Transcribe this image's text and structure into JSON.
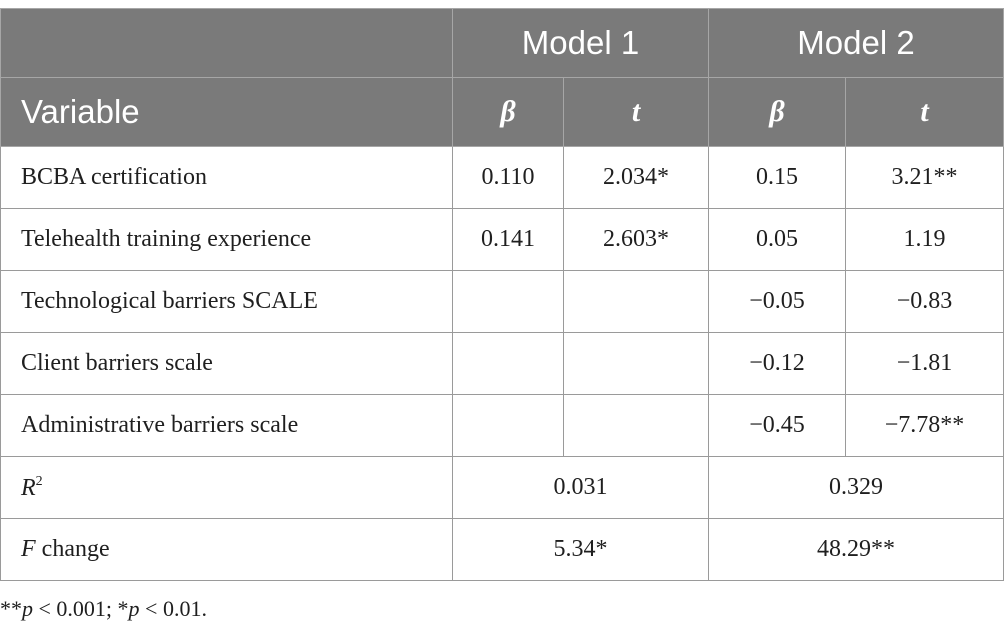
{
  "header": {
    "model1": "Model 1",
    "model2": "Model 2",
    "variable": "Variable",
    "beta": "β",
    "t": "t"
  },
  "rows": [
    {
      "label": "BCBA certification",
      "m1_beta": "0.110",
      "m1_t": "2.034*",
      "m2_beta": "0.15",
      "m2_t": "3.21**"
    },
    {
      "label": "Telehealth training experience",
      "m1_beta": "0.141",
      "m1_t": "2.603*",
      "m2_beta": "0.05",
      "m2_t": "1.19"
    },
    {
      "label": "Technological barriers SCALE",
      "m1_beta": "",
      "m1_t": "",
      "m2_beta": "−0.05",
      "m2_t": "−0.83"
    },
    {
      "label": "Client barriers scale",
      "m1_beta": "",
      "m1_t": "",
      "m2_beta": "−0.12",
      "m2_t": "−1.81"
    },
    {
      "label": "Administrative barriers scale",
      "m1_beta": "",
      "m1_t": "",
      "m2_beta": "−0.45",
      "m2_t": "−7.78**"
    }
  ],
  "r2": {
    "symbol": "R",
    "superscript": "2",
    "model1": "0.031",
    "model2": "0.329"
  },
  "f_change": {
    "symbol": "F",
    "label": " change",
    "model1": "5.34*",
    "model2": "48.29**"
  },
  "footnote": {
    "stars2": "**",
    "p1": "p",
    "cond1": " < 0.001; *",
    "p2": "p",
    "cond2": " < 0.01."
  }
}
